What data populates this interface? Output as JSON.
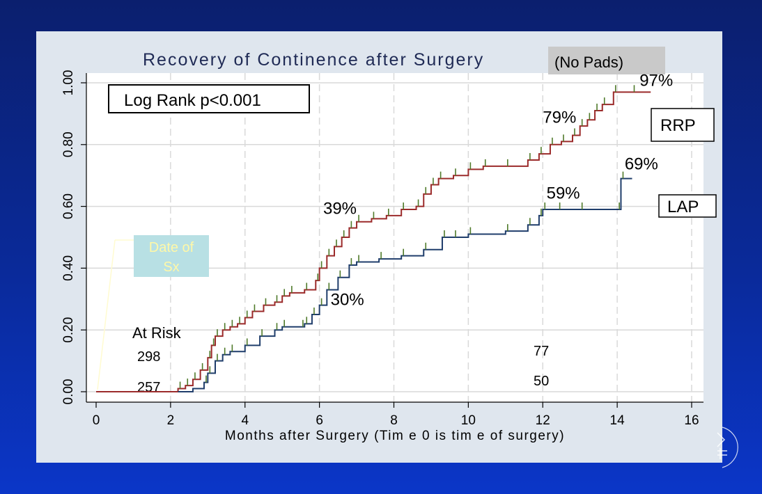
{
  "chart_data": {
    "type": "line",
    "title": "Recovery of Continence after Surgery",
    "title_note": "(No Pads)",
    "xlabel": "Months after Surgery (Tim e 0 is tim e of surgery)",
    "ylabel": "",
    "xlim": [
      0,
      16
    ],
    "ylim": [
      0,
      1
    ],
    "x_ticks": [
      "0",
      "2",
      "4",
      "6",
      "8",
      "10",
      "12",
      "14",
      "16"
    ],
    "y_ticks": [
      "0.00",
      "0.20",
      "0.40",
      "0.60",
      "0.80",
      "1.00"
    ],
    "grid": true,
    "series": [
      {
        "name": "RRP",
        "color": "#9b2a2a",
        "x": [
          0,
          0.9,
          2.2,
          2.4,
          2.6,
          2.8,
          3.0,
          3.1,
          3.2,
          3.4,
          3.6,
          3.8,
          4.0,
          4.2,
          4.5,
          4.8,
          5.0,
          5.2,
          5.6,
          5.9,
          6.0,
          6.2,
          6.4,
          6.6,
          6.8,
          7.0,
          7.4,
          7.8,
          8.2,
          8.6,
          8.8,
          9.0,
          9.2,
          9.6,
          10.0,
          10.4,
          11.0,
          11.6,
          11.9,
          12.2,
          12.5,
          12.8,
          13.0,
          13.2,
          13.4,
          13.6,
          13.9,
          14.4,
          14.9
        ],
        "y": [
          0,
          0,
          0.01,
          0.02,
          0.04,
          0.07,
          0.11,
          0.15,
          0.18,
          0.2,
          0.21,
          0.22,
          0.24,
          0.26,
          0.28,
          0.29,
          0.31,
          0.32,
          0.33,
          0.36,
          0.4,
          0.44,
          0.47,
          0.5,
          0.53,
          0.55,
          0.56,
          0.57,
          0.59,
          0.6,
          0.64,
          0.67,
          0.69,
          0.7,
          0.72,
          0.73,
          0.73,
          0.75,
          0.77,
          0.8,
          0.81,
          0.83,
          0.86,
          0.88,
          0.91,
          0.93,
          0.97,
          0.97,
          0.97
        ]
      },
      {
        "name": "LAP",
        "color": "#1f3d6b",
        "x": [
          2.2,
          2.6,
          2.9,
          3.0,
          3.2,
          3.4,
          3.6,
          4.0,
          4.4,
          4.8,
          5.0,
          5.5,
          5.6,
          5.8,
          6.0,
          6.2,
          6.5,
          6.8,
          7.0,
          7.6,
          8.2,
          8.8,
          9.3,
          9.6,
          10.0,
          11.0,
          11.6,
          11.9,
          12.0,
          12.4,
          13.0,
          14.0,
          14.1,
          14.4
        ],
        "y": [
          0,
          0.01,
          0.03,
          0.06,
          0.1,
          0.12,
          0.13,
          0.15,
          0.18,
          0.2,
          0.21,
          0.21,
          0.22,
          0.25,
          0.28,
          0.33,
          0.37,
          0.41,
          0.42,
          0.43,
          0.44,
          0.46,
          0.5,
          0.5,
          0.51,
          0.52,
          0.54,
          0.57,
          0.59,
          0.59,
          0.59,
          0.59,
          0.69,
          0.69
        ]
      }
    ],
    "annotations": [
      {
        "text": "97%",
        "x": 14.6,
        "y": 0.99
      },
      {
        "text": "79%",
        "x": 12.0,
        "y": 0.87
      },
      {
        "text": "69%",
        "x": 14.2,
        "y": 0.72
      },
      {
        "text": "59%",
        "x": 12.1,
        "y": 0.625
      },
      {
        "text": "39%",
        "x": 6.1,
        "y": 0.575
      },
      {
        "text": "30%",
        "x": 6.3,
        "y": 0.28
      }
    ],
    "legend_boxes": [
      "RRP",
      "LAP"
    ],
    "stat_box": "Log Rank p<0.001",
    "date_of_sx_label": [
      "Date of",
      "Sx"
    ],
    "at_risk": {
      "label": "At Risk",
      "values_t0": [
        "298",
        "257"
      ],
      "values_t12": [
        "77",
        "50"
      ]
    }
  }
}
